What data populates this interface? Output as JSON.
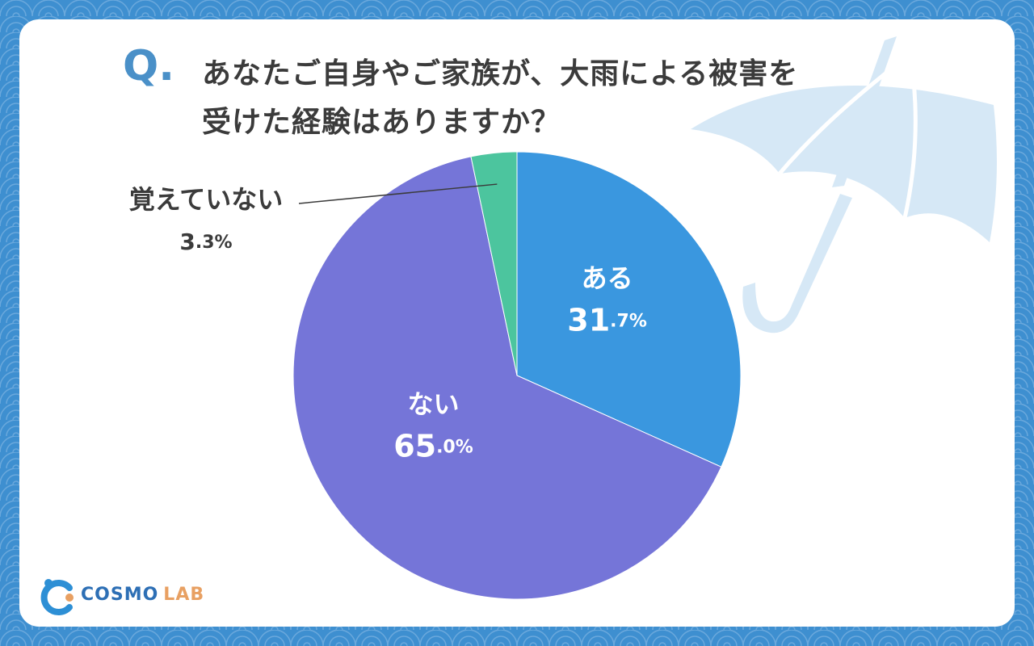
{
  "question_marker": "Q.",
  "brand": {
    "name": "COSMO",
    "suffix": "LAB"
  },
  "chart_data": {
    "type": "pie",
    "title": "あなたご自身やご家族が、大雨による被害を\n受けた経験はありますか？",
    "categories": [
      "ある",
      "ない",
      "覚えていない"
    ],
    "values": [
      31.7,
      65.0,
      3.3
    ],
    "value_labels": [
      "31.7%",
      "65.0%",
      "3.3%"
    ],
    "colors": [
      "#3a97df",
      "#7575d8",
      "#4cc59e"
    ]
  }
}
